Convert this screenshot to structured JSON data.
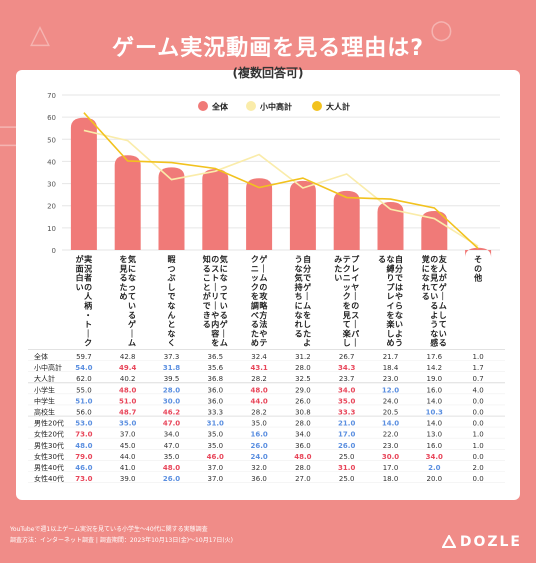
{
  "title": "ゲーム実況動画を見る理由は?",
  "subtitle": "(複数回答可)",
  "legend": [
    {
      "name": "全体",
      "color": "#f07a78",
      "kind": "bar"
    },
    {
      "name": "小中高計",
      "color": "#faecaa",
      "kind": "line"
    },
    {
      "name": "大人計",
      "color": "#f2c21e",
      "kind": "line"
    }
  ],
  "chart_data": {
    "type": "bar",
    "categories": [
      "実況者の人柄・トークが面白い",
      "気になっているゲームを見るため",
      "暇つぶしでなんとなく",
      "気になっているゲームのストーリーや内容を知ることができる",
      "ゲームの攻略方法やテクニックを調べるため",
      "自分でゲームをしたような気持ちになれる",
      "プレイヤーのスーパーテクニックを見て楽しみたい",
      "自分ではやらないような縛りプレイを楽しめる",
      "友人がゲームしているのを見ているような感覚になれる",
      "その他"
    ],
    "ylim": [
      0,
      70
    ],
    "yticks": [
      0,
      10,
      20,
      30,
      40,
      50,
      60,
      70
    ],
    "grid": true,
    "legend_position": "top-right",
    "series": [
      {
        "name": "全体",
        "type": "bar",
        "color": "#f07a78",
        "values": [
          59.7,
          42.8,
          37.3,
          36.5,
          32.4,
          31.2,
          26.7,
          21.7,
          17.6,
          1.0
        ]
      },
      {
        "name": "小中高計",
        "type": "line",
        "color": "#faecaa",
        "values": [
          54.0,
          49.4,
          31.8,
          35.6,
          43.1,
          28.0,
          34.3,
          18.4,
          14.2,
          1.7
        ]
      },
      {
        "name": "大人計",
        "type": "line",
        "color": "#f2c21e",
        "values": [
          62.0,
          40.2,
          39.5,
          36.8,
          28.2,
          32.5,
          23.7,
          23.0,
          19.0,
          0.7
        ]
      }
    ]
  },
  "table": {
    "rows": [
      {
        "label": "全体",
        "values": [
          "59.7",
          "42.8",
          "37.3",
          "36.5",
          "32.4",
          "31.2",
          "26.7",
          "21.7",
          "17.6",
          "1.0"
        ],
        "colors": [
          "",
          "",
          "",
          "",
          "",
          "",
          "",
          "",
          "",
          ""
        ]
      },
      {
        "label": "小中高計",
        "values": [
          "54.0",
          "49.4",
          "31.8",
          "35.6",
          "43.1",
          "28.0",
          "34.3",
          "18.4",
          "14.2",
          "1.7"
        ],
        "colors": [
          "b",
          "r",
          "b",
          "",
          "r",
          "",
          "r",
          "",
          "",
          ""
        ]
      },
      {
        "label": "大人計",
        "values": [
          "62.0",
          "40.2",
          "39.5",
          "36.8",
          "28.2",
          "32.5",
          "23.7",
          "23.0",
          "19.0",
          "0.7"
        ],
        "colors": [
          "",
          "",
          "",
          "",
          "",
          "",
          "",
          "",
          "",
          ""
        ]
      },
      {
        "label": "小学生",
        "values": [
          "55.0",
          "48.0",
          "28.0",
          "36.0",
          "48.0",
          "29.0",
          "34.0",
          "12.0",
          "16.0",
          "4.0"
        ],
        "colors": [
          "",
          "r",
          "b",
          "",
          "r",
          "",
          "r",
          "b",
          "",
          ""
        ]
      },
      {
        "label": "中学生",
        "values": [
          "51.0",
          "51.0",
          "30.0",
          "36.0",
          "44.0",
          "26.0",
          "35.0",
          "24.0",
          "14.0",
          "0.0"
        ],
        "colors": [
          "b",
          "r",
          "b",
          "",
          "r",
          "",
          "r",
          "",
          "",
          ""
        ]
      },
      {
        "label": "高校生",
        "values": [
          "56.0",
          "48.7",
          "46.2",
          "33.3",
          "28.2",
          "30.8",
          "33.3",
          "20.5",
          "10.3",
          "0.0"
        ],
        "colors": [
          "",
          "r",
          "r",
          "",
          "",
          "",
          "r",
          "",
          "b",
          ""
        ]
      },
      {
        "label": "男性20代",
        "values": [
          "53.0",
          "35.0",
          "47.0",
          "31.0",
          "35.0",
          "28.0",
          "21.0",
          "14.0",
          "14.0",
          "0.0"
        ],
        "colors": [
          "b",
          "b",
          "r",
          "b",
          "",
          "",
          "b",
          "b",
          "",
          ""
        ]
      },
      {
        "label": "女性20代",
        "values": [
          "73.0",
          "37.0",
          "34.0",
          "35.0",
          "16.0",
          "34.0",
          "17.0",
          "22.0",
          "13.0",
          "1.0"
        ],
        "colors": [
          "r",
          "",
          "",
          "",
          "b",
          "",
          "b",
          "",
          "",
          ""
        ]
      },
      {
        "label": "男性30代",
        "values": [
          "48.0",
          "45.0",
          "47.0",
          "35.0",
          "26.0",
          "36.0",
          "26.0",
          "23.0",
          "16.0",
          "1.0"
        ],
        "colors": [
          "b",
          "",
          "",
          "",
          "b",
          "",
          "b",
          "",
          "",
          ""
        ]
      },
      {
        "label": "女性30代",
        "values": [
          "79.0",
          "44.0",
          "35.0",
          "46.0",
          "24.0",
          "48.0",
          "25.0",
          "30.0",
          "34.0",
          "0.0"
        ],
        "colors": [
          "r",
          "",
          "",
          "r",
          "b",
          "r",
          "",
          "r",
          "r",
          ""
        ]
      },
      {
        "label": "男性40代",
        "values": [
          "46.0",
          "41.0",
          "48.0",
          "37.0",
          "32.0",
          "28.0",
          "31.0",
          "17.0",
          "2.0",
          "2.0"
        ],
        "colors": [
          "b",
          "",
          "r",
          "",
          "",
          "",
          "r",
          "",
          "b",
          ""
        ]
      },
      {
        "label": "女性40代",
        "values": [
          "73.0",
          "39.0",
          "26.0",
          "37.0",
          "36.0",
          "27.0",
          "25.0",
          "18.0",
          "20.0",
          "0.0"
        ],
        "colors": [
          "r",
          "",
          "b",
          "",
          "",
          "",
          "",
          "",
          "",
          ""
        ]
      }
    ],
    "colors": {
      "r": "#e8465a",
      "b": "#5b8fe0",
      "": "#333333"
    }
  },
  "footer": {
    "line1": "YouTubeで週1以上ゲーム実況を見ている小学生〜40代に関する実態調査",
    "line2": "調査方法：インターネット調査 | 調査期間：2023年10月13日(金)〜10月17日(火)"
  },
  "brand": "DOZLE"
}
